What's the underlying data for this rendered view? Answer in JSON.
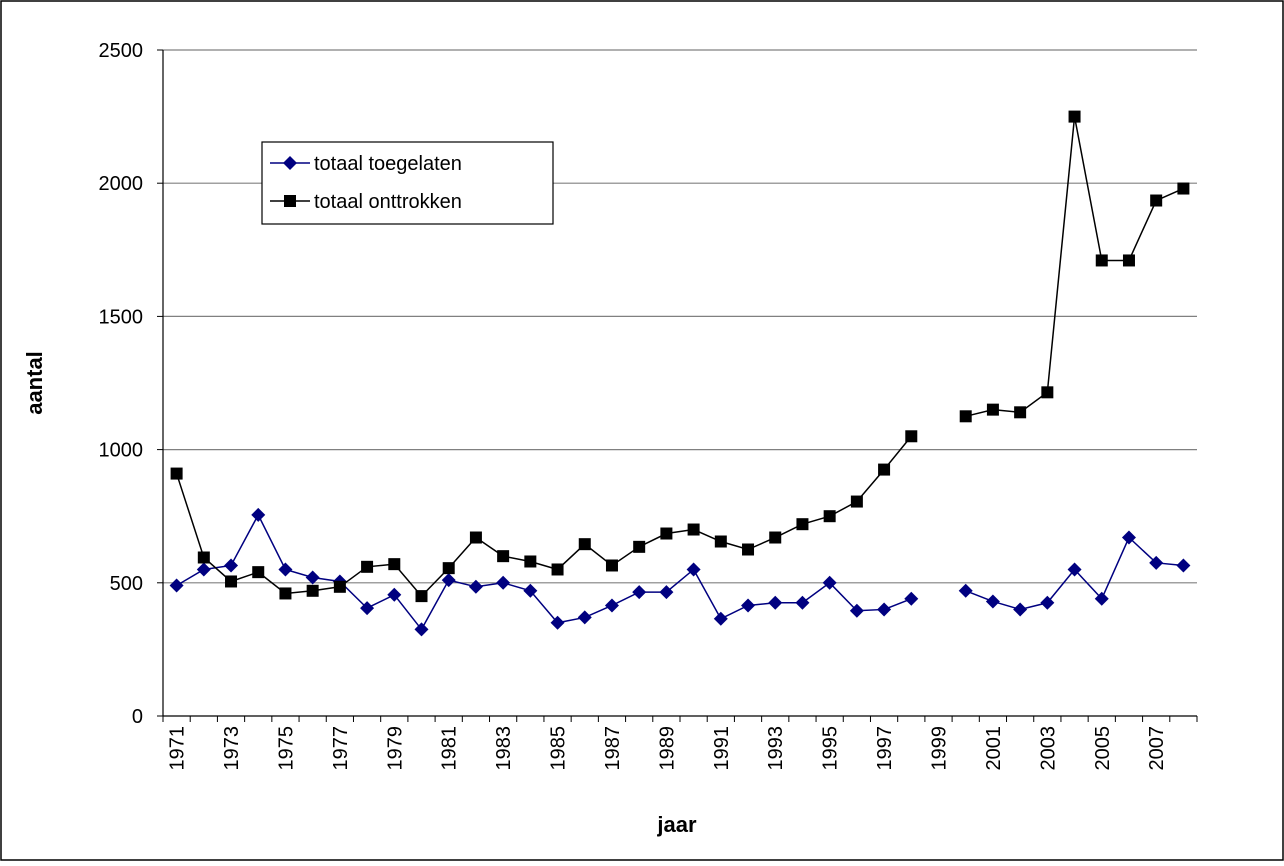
{
  "chart_data": {
    "type": "line",
    "x_label": "jaar",
    "y_label": "aantal",
    "categories": [
      "1971",
      null,
      "1973",
      null,
      "1975",
      null,
      "1977",
      null,
      "1979",
      null,
      "1981",
      null,
      "1983",
      null,
      "1985",
      null,
      "1987",
      null,
      "1989",
      null,
      "1991",
      null,
      "1993",
      null,
      "1995",
      null,
      "1997",
      null,
      "1999",
      null,
      "2001",
      null,
      "2003",
      null,
      "2005",
      null,
      "2007",
      null
    ],
    "series": [
      {
        "name": "totaal toegelaten",
        "color": "#000080",
        "marker": "diamond",
        "values": [
          490,
          550,
          565,
          755,
          550,
          520,
          505,
          405,
          455,
          325,
          510,
          485,
          500,
          470,
          350,
          370,
          415,
          465,
          465,
          550,
          365,
          415,
          425,
          425,
          500,
          395,
          400,
          440,
          null,
          470,
          430,
          400,
          425,
          550,
          440,
          670,
          575,
          565
        ]
      },
      {
        "name": "totaal onttrokken",
        "color": "#000000",
        "marker": "square",
        "values": [
          910,
          595,
          505,
          540,
          460,
          470,
          485,
          560,
          570,
          450,
          555,
          670,
          600,
          580,
          550,
          645,
          565,
          635,
          685,
          700,
          655,
          625,
          670,
          720,
          750,
          805,
          925,
          1050,
          null,
          1125,
          1150,
          1140,
          1215,
          2250,
          1710,
          1710,
          1935,
          1980
        ]
      }
    ],
    "ylim": [
      0,
      2500
    ],
    "yticks": [
      0,
      500,
      1000,
      1500,
      2000,
      2500
    ],
    "grid": true,
    "legend": "upper left"
  }
}
